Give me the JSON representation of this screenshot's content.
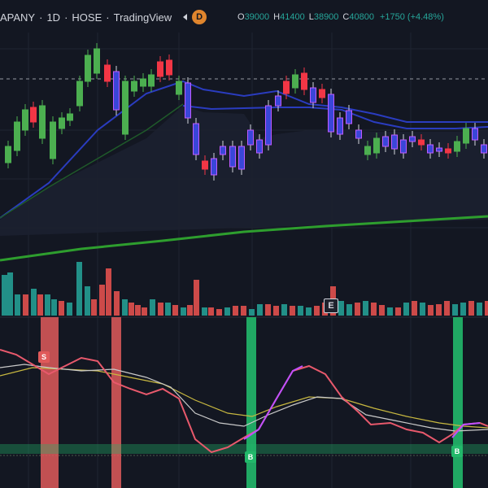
{
  "header": {
    "symbol": "APANY",
    "interval": "1D",
    "exchange": "HOSE",
    "source": "TradingView",
    "timeframe_badge": "D",
    "icons": [
      "collapse-left-icon",
      "timeframe-badge"
    ]
  },
  "ohlc": {
    "open_label": "O",
    "open": "39000",
    "high_label": "H",
    "high": "41400",
    "low_label": "L",
    "low": "38900",
    "close_label": "C",
    "close": "40800",
    "change": "+1750 (+4.48%)"
  },
  "markers": {
    "earnings": "E",
    "sell": "S",
    "buy": "B"
  },
  "colors": {
    "background": "#131722",
    "up": "#4caf50",
    "down": "#f23645",
    "signal_candle": "#8e44ff",
    "volume_up": "#26a69a",
    "volume_down": "#ef5350",
    "sell_band": "#e05a5a",
    "buy_band": "#22b86a",
    "ma_long": "#2e9e2e",
    "band_line": "#2a3cbf",
    "osc_fast": "#e8596c",
    "osc_alt": "#c050ff",
    "osc_slow": "#c9c9c9",
    "osc_signal": "#c8b840"
  }
}
